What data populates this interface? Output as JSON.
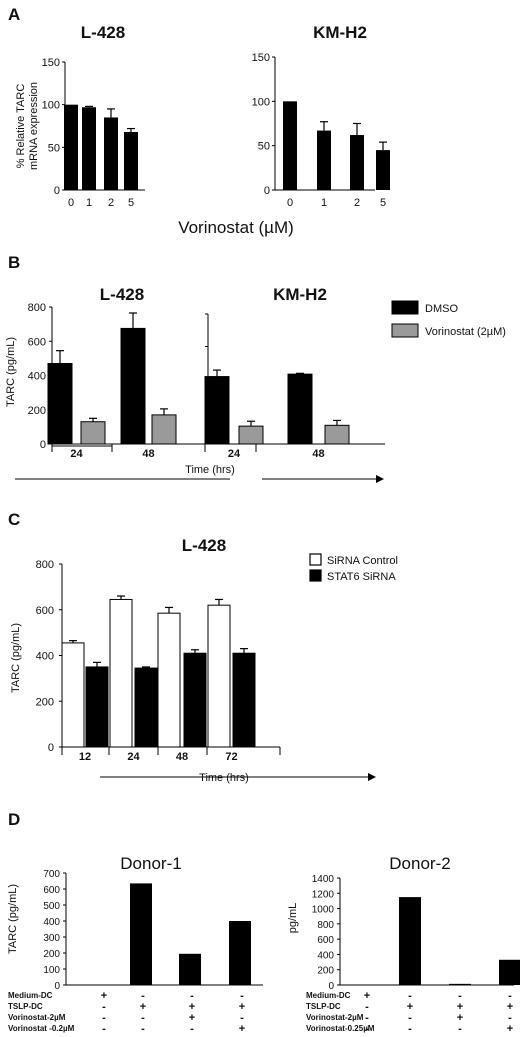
{
  "panels": [
    {
      "letter": "A"
    },
    {
      "letter": "B"
    },
    {
      "letter": "C"
    },
    {
      "letter": "D"
    }
  ],
  "chart_data": [
    {
      "panel": "A",
      "type": "bar",
      "title": "L-428",
      "ylabel": "% Relative TARC mRNA expression",
      "xlabel": "Vorinostat (µM)",
      "categories": [
        "0",
        "1",
        "2",
        "5"
      ],
      "values": [
        100,
        97,
        85,
        68
      ],
      "errors": [
        0,
        1,
        10,
        4
      ],
      "ylim": [
        0,
        150
      ],
      "yticks": [
        0,
        50,
        100,
        150
      ],
      "bar_color": "#000000"
    },
    {
      "panel": "A",
      "type": "bar",
      "title": "KM-H2",
      "ylabel": "",
      "xlabel": "Vorinostat (µM)",
      "categories": [
        "0",
        "1",
        "2",
        "5"
      ],
      "values": [
        100,
        67,
        62,
        45
      ],
      "errors": [
        0,
        10,
        13,
        9
      ],
      "ylim": [
        0,
        150
      ],
      "yticks": [
        0,
        50,
        100,
        150
      ],
      "bar_color": "#000000"
    },
    {
      "panel": "B",
      "type": "bar",
      "title": "L-428",
      "ylabel": "TARC (pg/mL)",
      "xlabel": "Time (hrs)",
      "categories": [
        "24",
        "48"
      ],
      "series": [
        {
          "name": "DMSO",
          "color": "#000000",
          "values": [
            470,
            675
          ],
          "errors": [
            75,
            90
          ]
        },
        {
          "name": "Vorinostat (2µM)",
          "color": "#9a9a9a",
          "values": [
            130,
            170
          ],
          "errors": [
            20,
            35
          ]
        }
      ],
      "ylim": [
        0,
        800
      ],
      "yticks": [
        0,
        200,
        400,
        600,
        800
      ]
    },
    {
      "panel": "B",
      "type": "bar",
      "title": "KM-H2",
      "ylabel": "",
      "xlabel": "Time (hrs)",
      "categories": [
        "24",
        "48"
      ],
      "series": [
        {
          "name": "DMSO",
          "color": "#000000",
          "values": [
            415,
            430
          ],
          "errors": [
            40,
            5
          ]
        },
        {
          "name": "Vorinostat (2µM)",
          "color": "#9a9a9a",
          "values": [
            110,
            115
          ],
          "errors": [
            30,
            30
          ]
        }
      ],
      "ylim": [
        0,
        800
      ],
      "yticks": [
        0,
        200,
        400,
        600,
        800
      ],
      "legend": {
        "position": "right",
        "entries": [
          "DMSO",
          "Vorinostat (2µM)"
        ]
      }
    },
    {
      "panel": "C",
      "type": "bar",
      "title": "L-428",
      "ylabel": "TARC (pg/mL)",
      "xlabel": "Time (hrs)",
      "categories": [
        "12",
        "24",
        "48",
        "72"
      ],
      "series": [
        {
          "name": "SiRNA Control",
          "color": "#ffffff",
          "values": [
            455,
            645,
            585,
            620
          ],
          "errors": [
            10,
            15,
            25,
            25
          ]
        },
        {
          "name": "STAT6 SiRNA",
          "color": "#000000",
          "values": [
            350,
            345,
            410,
            410
          ],
          "errors": [
            20,
            5,
            15,
            20
          ]
        }
      ],
      "ylim": [
        0,
        800
      ],
      "yticks": [
        0,
        200,
        400,
        600,
        800
      ],
      "legend": {
        "position": "top-right",
        "entries": [
          "SiRNA Control",
          "STAT6 SiRNA"
        ]
      }
    },
    {
      "panel": "D",
      "type": "bar",
      "title": "Donor-1",
      "ylabel": "TARC (pg/mL)",
      "groups": 4,
      "values": [
        0,
        635,
        195,
        400
      ],
      "ylim": [
        0,
        700
      ],
      "yticks": [
        0,
        100,
        200,
        300,
        400,
        500,
        600,
        700
      ],
      "conditions": [
        {
          "label": "Medium-DC",
          "signs": [
            "+",
            "-",
            "-",
            "-"
          ]
        },
        {
          "label": "TSLP-DC",
          "signs": [
            "-",
            "+",
            "+",
            "+"
          ]
        },
        {
          "label": "Vorinostat-2µM",
          "signs": [
            "-",
            "-",
            "+",
            "-"
          ]
        },
        {
          "label": "Vorinostat -0.2µM",
          "signs": [
            "-",
            "-",
            "-",
            "+"
          ]
        }
      ]
    },
    {
      "panel": "D",
      "type": "bar",
      "title": "Donor-2",
      "ylabel": "pg/mL",
      "groups": 4,
      "values": [
        0,
        1150,
        15,
        330
      ],
      "ylim": [
        0,
        1400
      ],
      "yticks": [
        0,
        200,
        400,
        600,
        800,
        1000,
        1200,
        1400
      ],
      "conditions": [
        {
          "label": "Medium-DC",
          "signs": [
            "+",
            "-",
            "-",
            "-"
          ]
        },
        {
          "label": "TSLP-DC",
          "signs": [
            "-",
            "+",
            "+",
            "+"
          ]
        },
        {
          "label": "Vorinostat-2µM",
          "signs": [
            "-",
            "-",
            "+",
            "-"
          ]
        },
        {
          "label": "Vorinostat-0.25µM",
          "signs": [
            "-",
            "-",
            "-",
            "+"
          ]
        }
      ]
    }
  ]
}
